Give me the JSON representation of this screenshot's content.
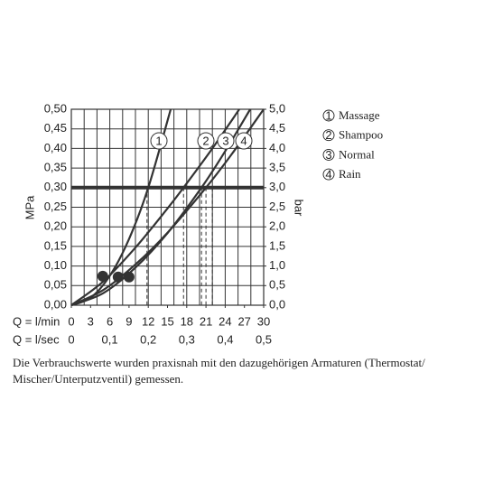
{
  "chart_data": {
    "type": "line",
    "y_label": "MPa",
    "y2_label": "bar",
    "x_label": "Q = l/min",
    "x2_label": "Q = l/sec",
    "xlim": [
      0,
      30
    ],
    "xticks": [
      0,
      3,
      6,
      9,
      12,
      15,
      18,
      21,
      24,
      27,
      30
    ],
    "xgrid": [
      0,
      2,
      4,
      6,
      8,
      10,
      12,
      14,
      16,
      18,
      20,
      22,
      24,
      26,
      28,
      30
    ],
    "x2lim": [
      0,
      0.5
    ],
    "x2ticks": [
      0,
      {
        "value": 0.1,
        "label": "0,1"
      },
      {
        "value": 0.2,
        "label": "0,2"
      },
      {
        "value": 0.3,
        "label": "0,3"
      },
      {
        "value": 0.4,
        "label": "0,4"
      },
      {
        "value": 0.5,
        "label": "0,5"
      }
    ],
    "ylim": [
      0,
      0.5
    ],
    "yticks": [
      {
        "value": 0,
        "label": "0,00"
      },
      {
        "value": 0.05,
        "label": "0,05"
      },
      {
        "value": 0.1,
        "label": "0,10"
      },
      {
        "value": 0.15,
        "label": "0,15"
      },
      {
        "value": 0.2,
        "label": "0,20"
      },
      {
        "value": 0.25,
        "label": "0,25"
      },
      {
        "value": 0.3,
        "label": "0,30"
      },
      {
        "value": 0.35,
        "label": "0,35"
      },
      {
        "value": 0.4,
        "label": "0,40"
      },
      {
        "value": 0.45,
        "label": "0,45"
      },
      {
        "value": 0.5,
        "label": "0,50"
      }
    ],
    "y2lim": [
      0,
      5
    ],
    "y2ticks": [
      {
        "value": 0,
        "label": "0,0"
      },
      {
        "value": 0.5,
        "label": "0,5"
      },
      {
        "value": 1,
        "label": "1,0"
      },
      {
        "value": 1.5,
        "label": "1,5"
      },
      {
        "value": 2,
        "label": "2,0"
      },
      {
        "value": 2.5,
        "label": "2,5"
      },
      {
        "value": 3,
        "label": "3,0"
      },
      {
        "value": 3.5,
        "label": "3,5"
      },
      {
        "value": 4,
        "label": "4,0"
      },
      {
        "value": 4.5,
        "label": "4,5"
      },
      {
        "value": 5,
        "label": "5,0"
      }
    ],
    "grid": true,
    "reference_line": 0.3,
    "dashed_x": [
      11.8,
      17.5,
      20.3,
      21,
      22
    ],
    "color": "#333333",
    "series": [
      {
        "label": "1",
        "name": "Massage",
        "x": [
          0,
          3,
          6,
          9,
          12,
          15.5
        ],
        "values": [
          0,
          0.019,
          0.075,
          0.169,
          0.3,
          0.5
        ]
      },
      {
        "label": "2",
        "name": "Shampoo",
        "x": [
          0,
          5,
          10,
          15,
          17.5,
          22,
          26.2
        ],
        "values": [
          0,
          0.061,
          0.147,
          0.247,
          0.3,
          0.4,
          0.5
        ]
      },
      {
        "label": "3",
        "name": "Normal",
        "x": [
          0,
          5,
          10,
          15,
          20.3,
          24,
          27.9
        ],
        "values": [
          0,
          0.031,
          0.096,
          0.184,
          0.3,
          0.393,
          0.5
        ]
      },
      {
        "label": "4",
        "name": "Rain",
        "x": [
          0,
          5,
          10,
          15,
          21,
          25,
          30
        ],
        "values": [
          0,
          0.039,
          0.104,
          0.185,
          0.3,
          0.385,
          0.5
        ]
      }
    ],
    "points": {
      "x": [
        4.9,
        7.3,
        9.0
      ],
      "values": [
        0.074,
        0.072,
        0.072
      ]
    },
    "caption": [
      "Die Verbrauchswerte wurden praxisnah mit den dazugehörigen Armaturen (Thermostat/",
      "Mischer/Unterputzventil) gemessen."
    ]
  }
}
